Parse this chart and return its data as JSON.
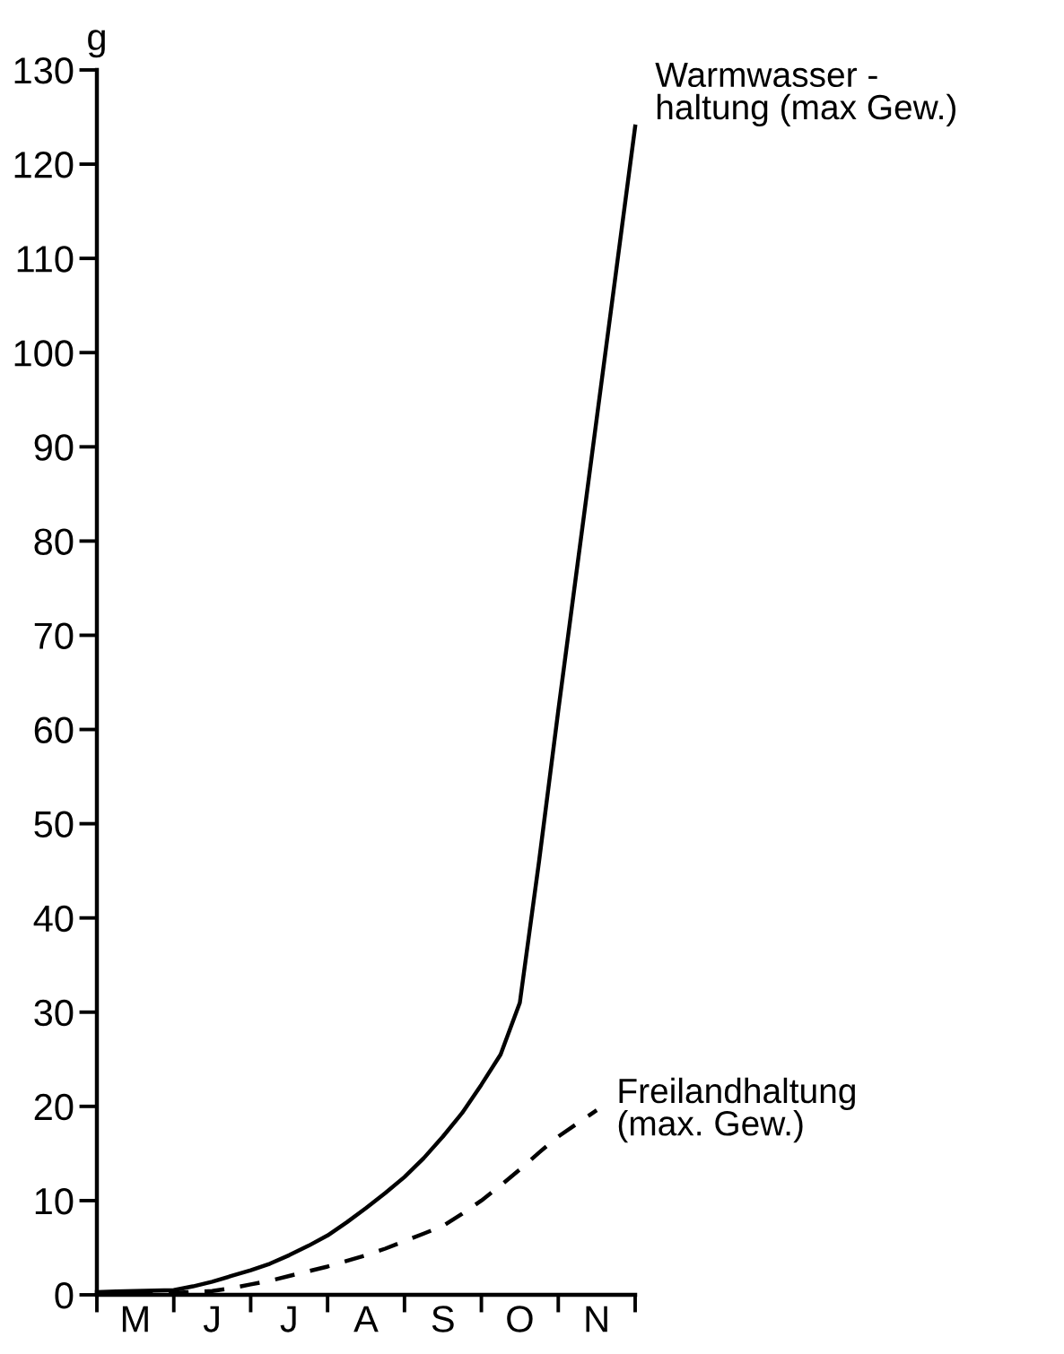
{
  "chart_data": {
    "type": "line",
    "ylabel": "g",
    "categories": [
      null,
      null,
      "M",
      null,
      null,
      null,
      "J",
      null,
      null,
      null,
      "J",
      null,
      null,
      null,
      "A",
      null,
      null,
      null,
      "S",
      null,
      null,
      null,
      "O",
      null,
      null,
      null,
      "N",
      null,
      null
    ],
    "ylim": [
      0,
      130
    ],
    "yticks": [
      0,
      10,
      20,
      30,
      40,
      50,
      60,
      70,
      80,
      90,
      100,
      110,
      120,
      130
    ],
    "grid": false,
    "legend": false,
    "marker": "none",
    "series": [
      {
        "name": "Warmwasser -\nhaltung (max Gew.)",
        "color": "#000000",
        "line_style": "solid",
        "values": [
          0.3,
          0.35,
          0.4,
          0.45,
          0.5,
          0.9,
          1.4,
          2.0,
          2.6,
          3.3,
          4.2,
          5.2,
          6.3,
          7.7,
          9.2,
          10.8,
          12.5,
          14.5,
          16.8,
          19.3,
          22.3,
          25.5,
          31,
          46,
          62,
          77.5,
          93,
          108.5,
          124
        ]
      },
      {
        "name": "Freilandhaltung\n(max. Gew.)",
        "color": "#000000",
        "line_style": "dashed",
        "values": [
          0.2,
          0.2,
          0.2,
          0.2,
          0.2,
          0.3,
          0.4,
          0.7,
          1.1,
          1.5,
          2.0,
          2.5,
          3.0,
          3.6,
          4.2,
          4.9,
          5.7,
          6.5,
          7.3,
          8.6,
          10.0,
          11.6,
          13.3,
          15.1,
          16.8,
          18.2,
          19.6,
          null,
          null
        ]
      }
    ]
  }
}
